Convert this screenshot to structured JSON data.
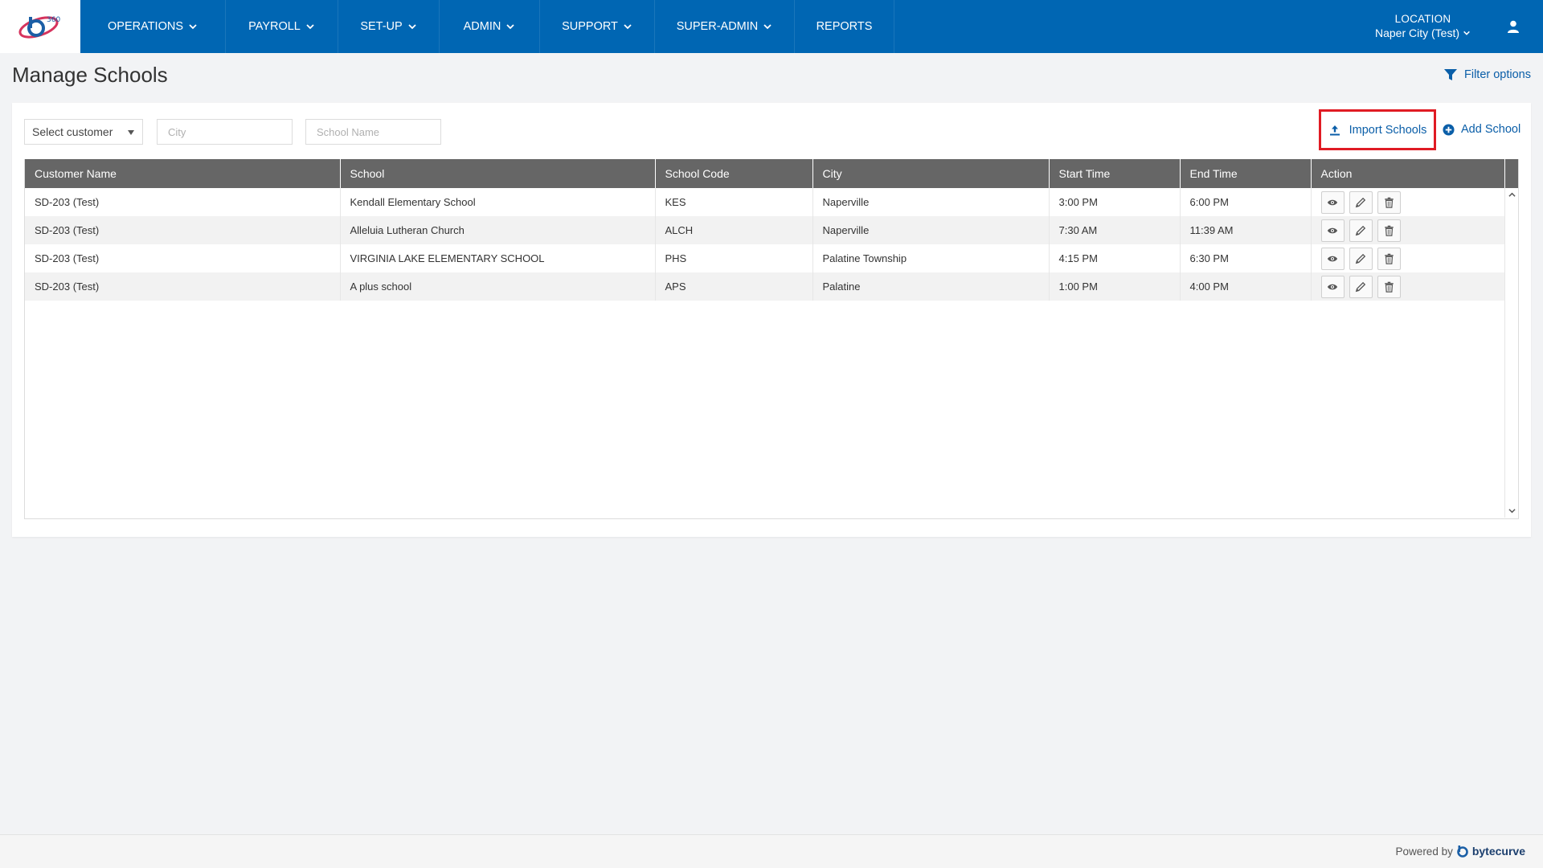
{
  "nav": {
    "items": [
      {
        "label": "OPERATIONS",
        "has_menu": true
      },
      {
        "label": "PAYROLL",
        "has_menu": true
      },
      {
        "label": "SET-UP",
        "has_menu": true
      },
      {
        "label": "ADMIN",
        "has_menu": true
      },
      {
        "label": "SUPPORT",
        "has_menu": true
      },
      {
        "label": "SUPER-ADMIN",
        "has_menu": true
      },
      {
        "label": "REPORTS",
        "has_menu": false
      }
    ],
    "location_title": "LOCATION",
    "location_value": "Naper City (Test)"
  },
  "page": {
    "title": "Manage Schools",
    "filter_label": "Filter options"
  },
  "filters": {
    "customer_select": "Select customer",
    "city_placeholder": "City",
    "school_name_placeholder": "School Name"
  },
  "actions": {
    "import_label": "Import Schools",
    "add_label": "Add School"
  },
  "table": {
    "columns": [
      "Customer Name",
      "School",
      "School Code",
      "City",
      "Start Time",
      "End Time",
      "Action"
    ],
    "rows": [
      {
        "customer": "SD-203 (Test)",
        "school": "Kendall Elementary School",
        "code": "KES",
        "city": "Naperville",
        "start": "3:00 PM",
        "end": "6:00 PM"
      },
      {
        "customer": "SD-203 (Test)",
        "school": "Alleluia Lutheran Church",
        "code": "ALCH",
        "city": "Naperville",
        "start": "7:30 AM",
        "end": "11:39 AM"
      },
      {
        "customer": "SD-203 (Test)",
        "school": "VIRGINIA LAKE ELEMENTARY SCHOOL",
        "code": "PHS",
        "city": "Palatine Township",
        "start": "4:15 PM",
        "end": "6:30 PM"
      },
      {
        "customer": "SD-203 (Test)",
        "school": "A plus school",
        "code": "APS",
        "city": "Palatine",
        "start": "1:00 PM",
        "end": "4:00 PM"
      }
    ]
  },
  "footer": {
    "powered_by": "Powered by",
    "brand": "bytecurve"
  },
  "colors": {
    "nav_bg": "#0066b3",
    "accent": "#0a5ea8",
    "highlight": "#e01b24",
    "table_header": "#666666"
  },
  "icons": {
    "nav_chevron": "chevron-down-icon",
    "user": "user-icon",
    "filter": "filter-icon",
    "import": "upload-icon",
    "add": "plus-circle-icon",
    "view": "eye-icon",
    "edit": "pencil-icon",
    "delete": "trash-icon"
  }
}
